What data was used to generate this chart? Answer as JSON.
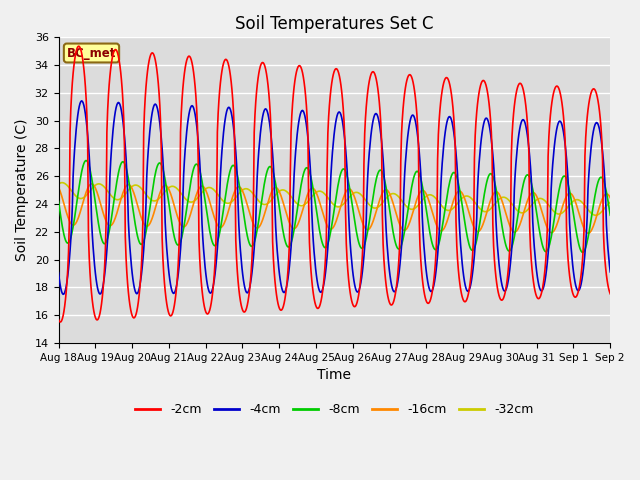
{
  "title": "Soil Temperatures Set C",
  "xlabel": "Time",
  "ylabel": "Soil Temperature (C)",
  "ylim": [
    14,
    36
  ],
  "line_colors": {
    "-2cm": "#FF0000",
    "-4cm": "#0000CC",
    "-8cm": "#00CC00",
    "-16cm": "#FF8800",
    "-32cm": "#CCCC00"
  },
  "legend_labels": [
    "-2cm",
    "-4cm",
    "-8cm",
    "-16cm",
    "-32cm"
  ],
  "bg_color": "#DCDCDC",
  "grid_color": "#FFFFFF",
  "fig_color": "#F0F0F0",
  "bc_met_label": "BC_met",
  "xtick_labels": [
    "Aug 18",
    "Aug 19",
    "Aug 20",
    "Aug 21",
    "Aug 22",
    "Aug 23",
    "Aug 24",
    "Aug 25",
    "Aug 26",
    "Aug 27",
    "Aug 28",
    "Aug 29",
    "Aug 30",
    "Aug 31",
    "Sep 1",
    "Sep 2"
  ]
}
